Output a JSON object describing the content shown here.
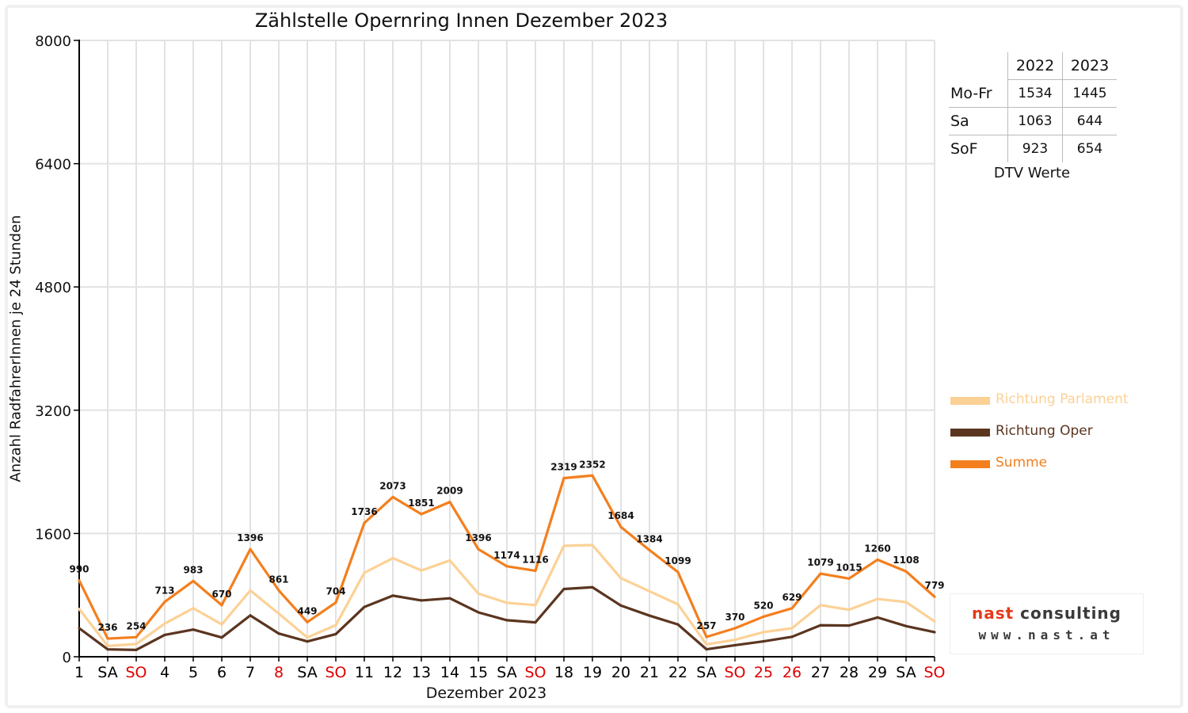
{
  "chart_data": {
    "type": "line",
    "title": "Zählstelle Opernring Innen Dezember 2023",
    "xlabel": "Dezember 2023",
    "ylabel": "Anzahl RadfahrerInnen je 24 Stunden",
    "ylim": [
      0,
      8000
    ],
    "yticks": [
      0,
      1600,
      3200,
      4800,
      6400,
      8000
    ],
    "grid": true,
    "legend_position": "right",
    "categories": [
      "1",
      "SA",
      "SO",
      "4",
      "5",
      "6",
      "7",
      "8",
      "SA",
      "SO",
      "11",
      "12",
      "13",
      "14",
      "15",
      "SA",
      "SO",
      "18",
      "19",
      "20",
      "21",
      "22",
      "SA",
      "SO",
      "25",
      "26",
      "27",
      "28",
      "29",
      "SA",
      "SO"
    ],
    "category_colors": [
      "#000000",
      "#000000",
      "#e00000",
      "#000000",
      "#000000",
      "#000000",
      "#000000",
      "#e00000",
      "#000000",
      "#e00000",
      "#000000",
      "#000000",
      "#000000",
      "#000000",
      "#000000",
      "#000000",
      "#e00000",
      "#000000",
      "#000000",
      "#000000",
      "#000000",
      "#000000",
      "#000000",
      "#e00000",
      "#e00000",
      "#e00000",
      "#000000",
      "#000000",
      "#000000",
      "#000000",
      "#e00000"
    ],
    "series": [
      {
        "name": "Richtung Parlament",
        "color": "#fcd196",
        "values": [
          620,
          140,
          165,
          430,
          630,
          420,
          860,
          560,
          250,
          410,
          1090,
          1280,
          1120,
          1250,
          820,
          700,
          670,
          1440,
          1450,
          1020,
          850,
          680,
          160,
          220,
          320,
          370,
          670,
          610,
          750,
          710,
          460
        ]
      },
      {
        "name": "Richtung Oper",
        "color": "#5b3520",
        "values": [
          370,
          96,
          89,
          283,
          353,
          250,
          536,
          301,
          199,
          294,
          646,
          793,
          731,
          759,
          576,
          474,
          446,
          879,
          902,
          664,
          534,
          419,
          97,
          150,
          200,
          259,
          409,
          405,
          510,
          398,
          319
        ]
      },
      {
        "name": "Summe",
        "color": "#f37f1e",
        "values": [
          990,
          236,
          254,
          713,
          983,
          670,
          1396,
          861,
          449,
          704,
          1736,
          2073,
          1851,
          2009,
          1396,
          1174,
          1116,
          2319,
          2352,
          1684,
          1384,
          1099,
          257,
          370,
          520,
          629,
          1079,
          1015,
          1260,
          1108,
          779
        ]
      }
    ],
    "data_labels": [
      "990",
      "236",
      "254",
      "713",
      "983",
      "670",
      "1396",
      "861",
      "449",
      "704",
      "1736",
      "2073",
      "1851",
      "2009",
      "1396",
      "1174",
      "1116",
      "2319",
      "2352",
      "1684",
      "1384",
      "1099",
      "257",
      "370",
      "520",
      "629",
      "1079",
      "1015",
      "1260",
      "1108",
      "779"
    ],
    "dtv_table": {
      "caption": "DTV Werte",
      "headers": [
        "",
        "2022",
        "2023"
      ],
      "rows": [
        {
          "label": "Mo-Fr",
          "v2022": "1534",
          "v2023": "1445"
        },
        {
          "label": "Sa",
          "v2022": "1063",
          "v2023": "644"
        },
        {
          "label": "SoF",
          "v2022": "923",
          "v2023": "654"
        }
      ]
    }
  },
  "logo": {
    "name_part1": "nast",
    "name_part2": "consulting",
    "url": "www.nast.at"
  }
}
